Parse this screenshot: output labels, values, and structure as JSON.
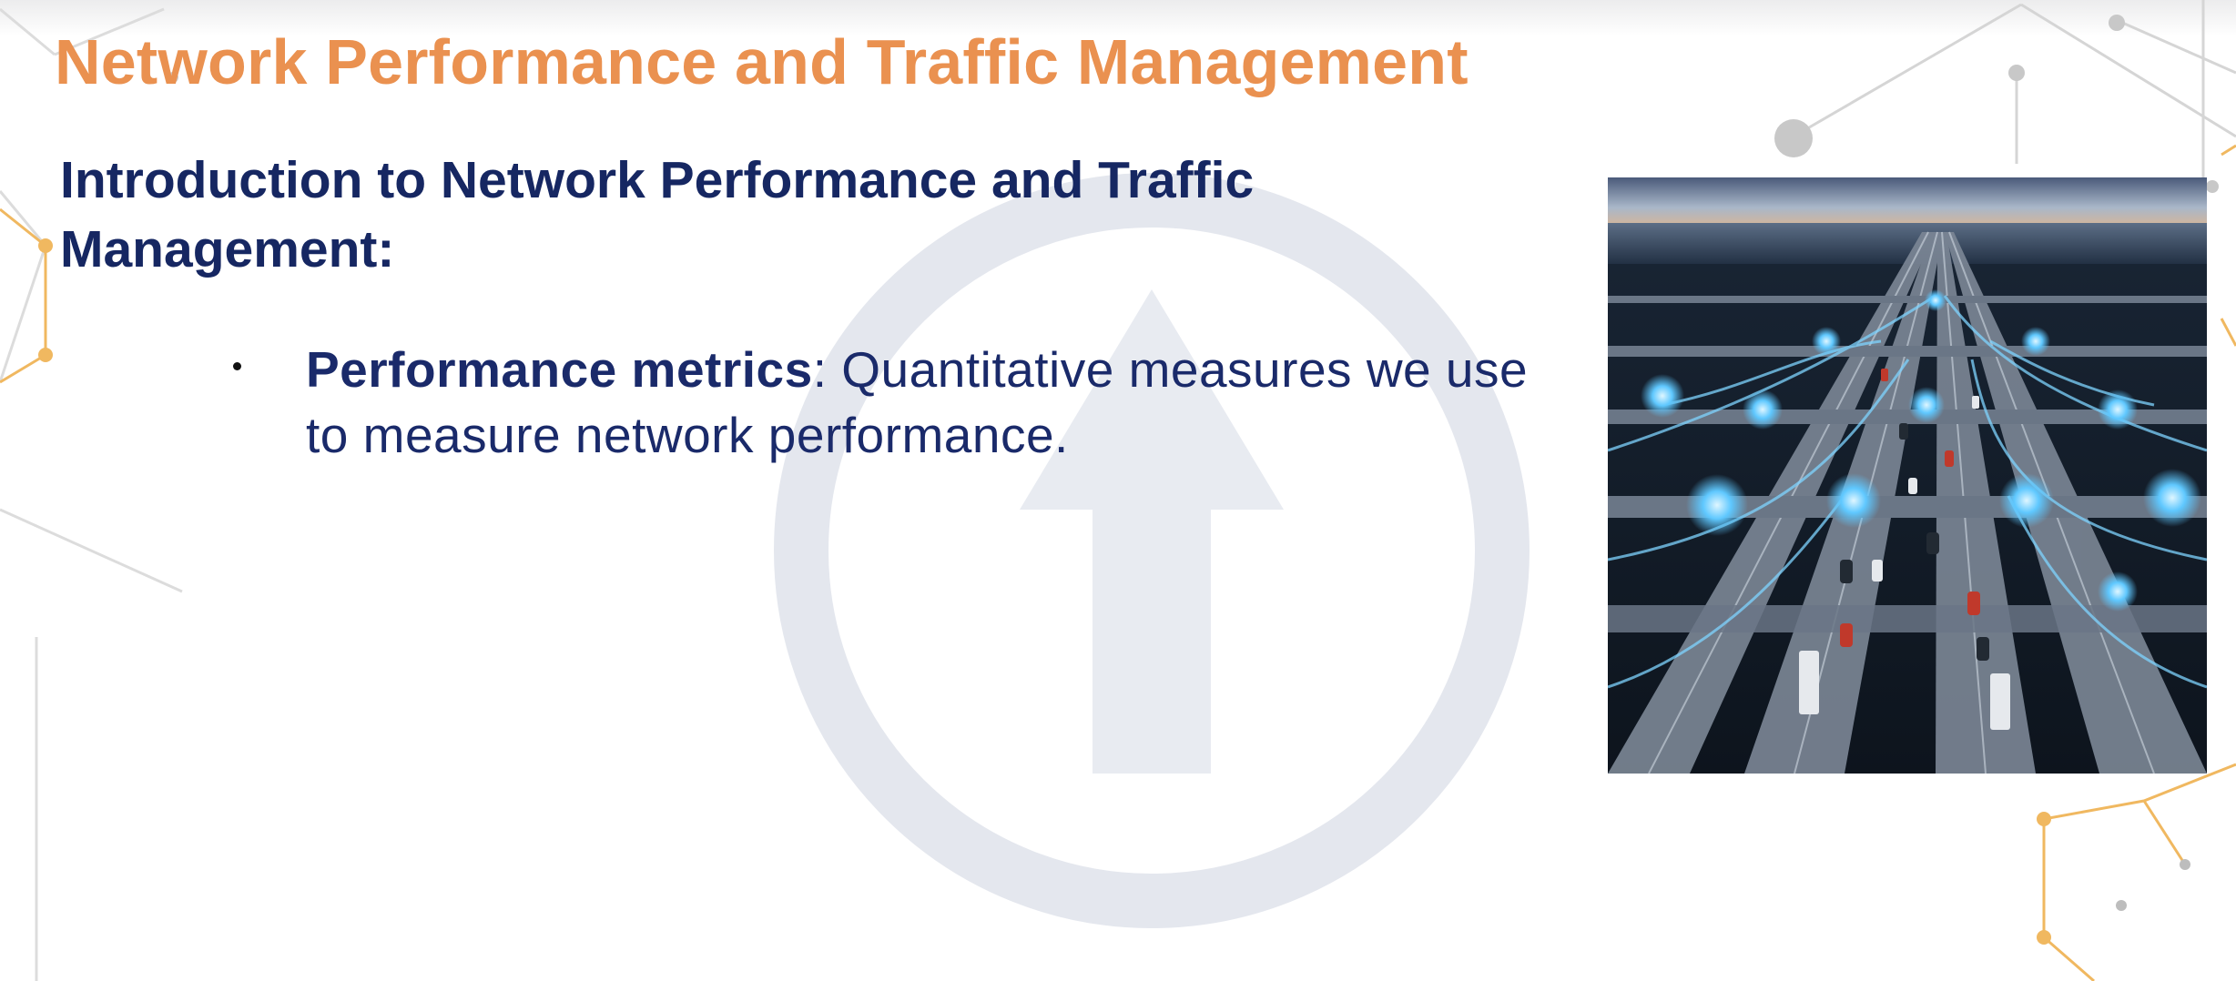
{
  "slide": {
    "title": "Network Performance and Traffic Management",
    "subtitle": "Introduction to Network Performance and Traffic Management:",
    "bullets": [
      {
        "term": "Performance metrics",
        "separator": ": ",
        "text": "Quantitative measures we use to measure network performance."
      }
    ],
    "image": {
      "subject": "highway-network-illustration"
    }
  },
  "colors": {
    "title": "#ea9150",
    "heading": "#162762",
    "body": "#1a2a6a",
    "network_lines": "#d5d5d5",
    "network_accent": "#f0b860",
    "watermark": "#e4e7ee"
  },
  "icons": [
    "network-pattern",
    "upload-arrow-watermark"
  ]
}
